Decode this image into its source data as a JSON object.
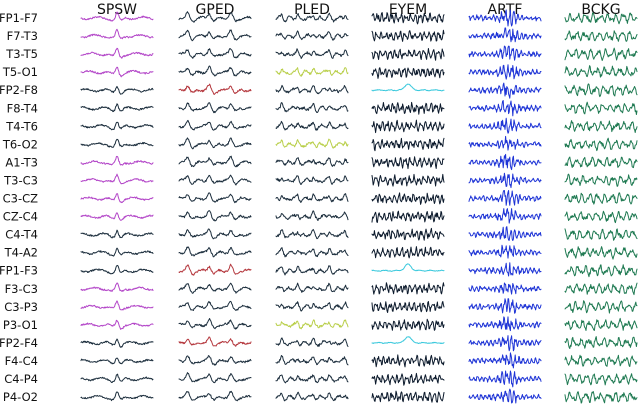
{
  "columns": [
    {
      "label": "SPSW",
      "pattern": "spike"
    },
    {
      "label": "GPED",
      "pattern": "gped"
    },
    {
      "label": "PLED",
      "pattern": "pled"
    },
    {
      "label": "EYEM",
      "pattern": "eyem"
    },
    {
      "label": "ARTF",
      "pattern": "artf"
    },
    {
      "label": "BCKG",
      "pattern": "bckg"
    }
  ],
  "channels": [
    "FP1-F7",
    "F7-T3",
    "T3-T5",
    "T5-O1",
    "FP2-F8",
    "F8-T4",
    "T4-T6",
    "T6-O2",
    "A1-T3",
    "T3-C3",
    "C3-CZ",
    "CZ-C4",
    "C4-T4",
    "T4-A2",
    "FP1-F3",
    "F3-C3",
    "C3-P3",
    "P3-O1",
    "FP2-F4",
    "F4-C4",
    "C4-P4",
    "P4-O2"
  ],
  "colors": {
    "default": "#1c2e3d",
    "magenta": "#b346c8",
    "red": "#b5393f",
    "olive": "#b9cf4a",
    "cyan": "#38c8dc",
    "navy": "#0c1a2c",
    "blue": "#1e34d6",
    "green": "#1f7a52"
  },
  "trace_colors": [
    [
      "magenta",
      "default",
      "default",
      "navy",
      "blue",
      "green"
    ],
    [
      "magenta",
      "default",
      "default",
      "navy",
      "blue",
      "green"
    ],
    [
      "magenta",
      "default",
      "default",
      "navy",
      "blue",
      "green"
    ],
    [
      "magenta",
      "default",
      "olive",
      "navy",
      "blue",
      "green"
    ],
    [
      "default",
      "red",
      "default",
      "cyan",
      "blue",
      "green"
    ],
    [
      "default",
      "default",
      "default",
      "navy",
      "blue",
      "green"
    ],
    [
      "default",
      "default",
      "default",
      "navy",
      "blue",
      "green"
    ],
    [
      "default",
      "default",
      "olive",
      "navy",
      "blue",
      "green"
    ],
    [
      "magenta",
      "default",
      "default",
      "navy",
      "blue",
      "green"
    ],
    [
      "magenta",
      "default",
      "default",
      "navy",
      "blue",
      "green"
    ],
    [
      "magenta",
      "default",
      "default",
      "navy",
      "blue",
      "green"
    ],
    [
      "magenta",
      "default",
      "default",
      "navy",
      "blue",
      "green"
    ],
    [
      "default",
      "default",
      "default",
      "navy",
      "blue",
      "green"
    ],
    [
      "default",
      "default",
      "default",
      "navy",
      "blue",
      "green"
    ],
    [
      "default",
      "red",
      "default",
      "cyan",
      "blue",
      "green"
    ],
    [
      "magenta",
      "default",
      "default",
      "navy",
      "blue",
      "green"
    ],
    [
      "magenta",
      "default",
      "default",
      "navy",
      "blue",
      "green"
    ],
    [
      "magenta",
      "default",
      "olive",
      "navy",
      "blue",
      "green"
    ],
    [
      "default",
      "red",
      "default",
      "cyan",
      "blue",
      "green"
    ],
    [
      "default",
      "default",
      "default",
      "navy",
      "blue",
      "green"
    ],
    [
      "default",
      "default",
      "default",
      "navy",
      "blue",
      "green"
    ],
    [
      "default",
      "default",
      "default",
      "navy",
      "blue",
      "green"
    ]
  ]
}
